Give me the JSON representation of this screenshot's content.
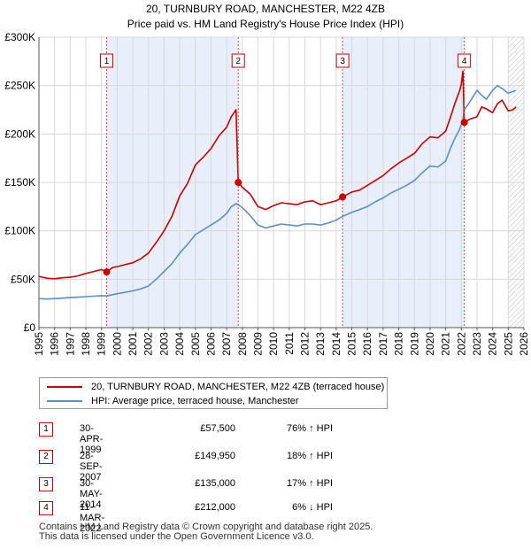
{
  "chart_data": {
    "type": "line",
    "title": "20, TURNBURY ROAD, MANCHESTER, M22 4ZB",
    "subtitle": "Price paid vs. HM Land Registry's House Price Index (HPI)",
    "xlabel": "",
    "ylabel": "",
    "xlim": [
      1995,
      2026
    ],
    "ylim": [
      0,
      300000
    ],
    "x_ticks": [
      "1995",
      "1996",
      "1997",
      "1998",
      "1999",
      "2000",
      "2001",
      "2002",
      "2003",
      "2004",
      "2005",
      "2006",
      "2007",
      "2008",
      "2009",
      "2010",
      "2011",
      "2012",
      "2013",
      "2014",
      "2015",
      "2016",
      "2017",
      "2018",
      "2019",
      "2020",
      "2021",
      "2022",
      "2023",
      "2024",
      "2025",
      "2026"
    ],
    "y_ticks": [
      {
        "value": 0,
        "label": "£0"
      },
      {
        "value": 50000,
        "label": "£50K"
      },
      {
        "value": 100000,
        "label": "£100K"
      },
      {
        "value": 150000,
        "label": "£150K"
      },
      {
        "value": 200000,
        "label": "£200K"
      },
      {
        "value": 250000,
        "label": "£250K"
      },
      {
        "value": 300000,
        "label": "£300K"
      }
    ],
    "grid": true,
    "series": [
      {
        "name": "20, TURNBURY ROAD, MANCHESTER, M22 4ZB (terraced house)",
        "color": "#cc0000",
        "x": [
          1995.0,
          1995.5,
          1996.0,
          1996.5,
          1997.0,
          1997.5,
          1998.0,
          1998.5,
          1999.0,
          1999.33,
          1999.7,
          2000.0,
          2000.5,
          2001.0,
          2001.5,
          2002.0,
          2002.5,
          2003.0,
          2003.5,
          2004.0,
          2004.5,
          2005.0,
          2005.5,
          2006.0,
          2006.5,
          2007.0,
          2007.3,
          2007.6,
          2007.74,
          2008.0,
          2008.5,
          2009.0,
          2009.5,
          2010.0,
          2010.5,
          2011.0,
          2011.5,
          2012.0,
          2012.5,
          2013.0,
          2013.5,
          2014.0,
          2014.41,
          2015.0,
          2015.5,
          2016.0,
          2016.5,
          2017.0,
          2017.5,
          2018.0,
          2018.5,
          2019.0,
          2019.5,
          2020.0,
          2020.5,
          2021.0,
          2021.3,
          2021.6,
          2021.9,
          2022.0,
          2022.1,
          2022.19,
          2022.5,
          2023.0,
          2023.3,
          2023.6,
          2024.0,
          2024.3,
          2024.6,
          2025.0,
          2025.3,
          2025.5
        ],
        "values": [
          53000,
          51000,
          50500,
          51500,
          52000,
          53500,
          56000,
          58000,
          60000,
          57500,
          62000,
          63000,
          65000,
          67000,
          71000,
          77000,
          88000,
          100000,
          115000,
          136000,
          149000,
          168000,
          176000,
          185000,
          198000,
          207000,
          218000,
          225000,
          149950,
          145000,
          138000,
          125000,
          122000,
          126000,
          129000,
          128000,
          127000,
          130000,
          131000,
          127000,
          129000,
          131000,
          135000,
          140000,
          142000,
          147000,
          152000,
          157000,
          164000,
          170000,
          175000,
          180000,
          190000,
          197000,
          196000,
          203000,
          217000,
          232000,
          245000,
          252000,
          265000,
          212000,
          215000,
          218000,
          228000,
          226000,
          222000,
          231000,
          235000,
          224000,
          225000,
          228000
        ]
      },
      {
        "name": "HPI: Average price, terraced house, Manchester",
        "color": "#5b8fc9",
        "x": [
          1995.0,
          1995.5,
          1996.0,
          1996.5,
          1997.0,
          1997.5,
          1998.0,
          1998.5,
          1999.0,
          1999.33,
          1999.7,
          2000.0,
          2000.5,
          2001.0,
          2001.5,
          2002.0,
          2002.5,
          2003.0,
          2003.5,
          2004.0,
          2004.5,
          2005.0,
          2005.5,
          2006.0,
          2006.5,
          2007.0,
          2007.3,
          2007.6,
          2007.74,
          2008.0,
          2008.5,
          2009.0,
          2009.5,
          2010.0,
          2010.5,
          2011.0,
          2011.5,
          2012.0,
          2012.5,
          2013.0,
          2013.5,
          2014.0,
          2014.41,
          2015.0,
          2015.5,
          2016.0,
          2016.5,
          2017.0,
          2017.5,
          2018.0,
          2018.5,
          2019.0,
          2019.5,
          2020.0,
          2020.5,
          2021.0,
          2021.3,
          2021.6,
          2021.9,
          2022.0,
          2022.1,
          2022.19,
          2022.5,
          2023.0,
          2023.3,
          2023.6,
          2024.0,
          2024.3,
          2024.6,
          2025.0,
          2025.3,
          2025.5
        ],
        "values": [
          30000,
          29500,
          30000,
          30500,
          31000,
          31500,
          32000,
          32500,
          33000,
          32700,
          34000,
          35000,
          36500,
          38000,
          40000,
          43000,
          50000,
          58000,
          66000,
          77000,
          86000,
          96000,
          101000,
          106000,
          111000,
          118000,
          125000,
          128000,
          127000,
          124000,
          116000,
          106000,
          103000,
          105000,
          107000,
          106000,
          105000,
          107000,
          107000,
          106000,
          108000,
          111000,
          115000,
          119000,
          122000,
          125000,
          130000,
          134000,
          139000,
          143000,
          147000,
          152000,
          160000,
          167000,
          166000,
          172000,
          185000,
          196000,
          205000,
          210000,
          215000,
          225000,
          232000,
          245000,
          240000,
          236000,
          245000,
          250000,
          247000,
          242000,
          244000,
          245000
        ]
      }
    ],
    "markers": [
      {
        "id": "1",
        "x": 1999.33,
        "value": 57500
      },
      {
        "id": "2",
        "x": 2007.74,
        "value": 149950
      },
      {
        "id": "3",
        "x": 2014.41,
        "value": 135000
      },
      {
        "id": "4",
        "x": 2022.19,
        "value": 212000
      }
    ],
    "hatched_future_from": 2025.0
  },
  "legend": {
    "items": [
      {
        "label": "20, TURNBURY ROAD, MANCHESTER, M22 4ZB (terraced house)",
        "color": "#cc0000"
      },
      {
        "label": "HPI: Average price, terraced house, Manchester",
        "color": "#5b8fc9"
      }
    ]
  },
  "transactions": [
    {
      "num": "1",
      "date": "30-APR-1999",
      "price": "£57,500",
      "hpi": "76% ↑ HPI"
    },
    {
      "num": "2",
      "date": "28-SEP-2007",
      "price": "£149,950",
      "hpi": "18% ↑ HPI"
    },
    {
      "num": "3",
      "date": "30-MAY-2014",
      "price": "£135,000",
      "hpi": "17% ↑ HPI"
    },
    {
      "num": "4",
      "date": "11-MAR-2022",
      "price": "£212,000",
      "hpi": "6% ↓ HPI"
    }
  ],
  "footer": {
    "line1": "Contains HM Land Registry data © Crown copyright and database right 2025.",
    "line2": "This data is licensed under the Open Government Licence v3.0."
  },
  "colors": {
    "shade": "#e8eefa",
    "grid": "#d8d8d8",
    "marker_line": "#dd4444"
  }
}
